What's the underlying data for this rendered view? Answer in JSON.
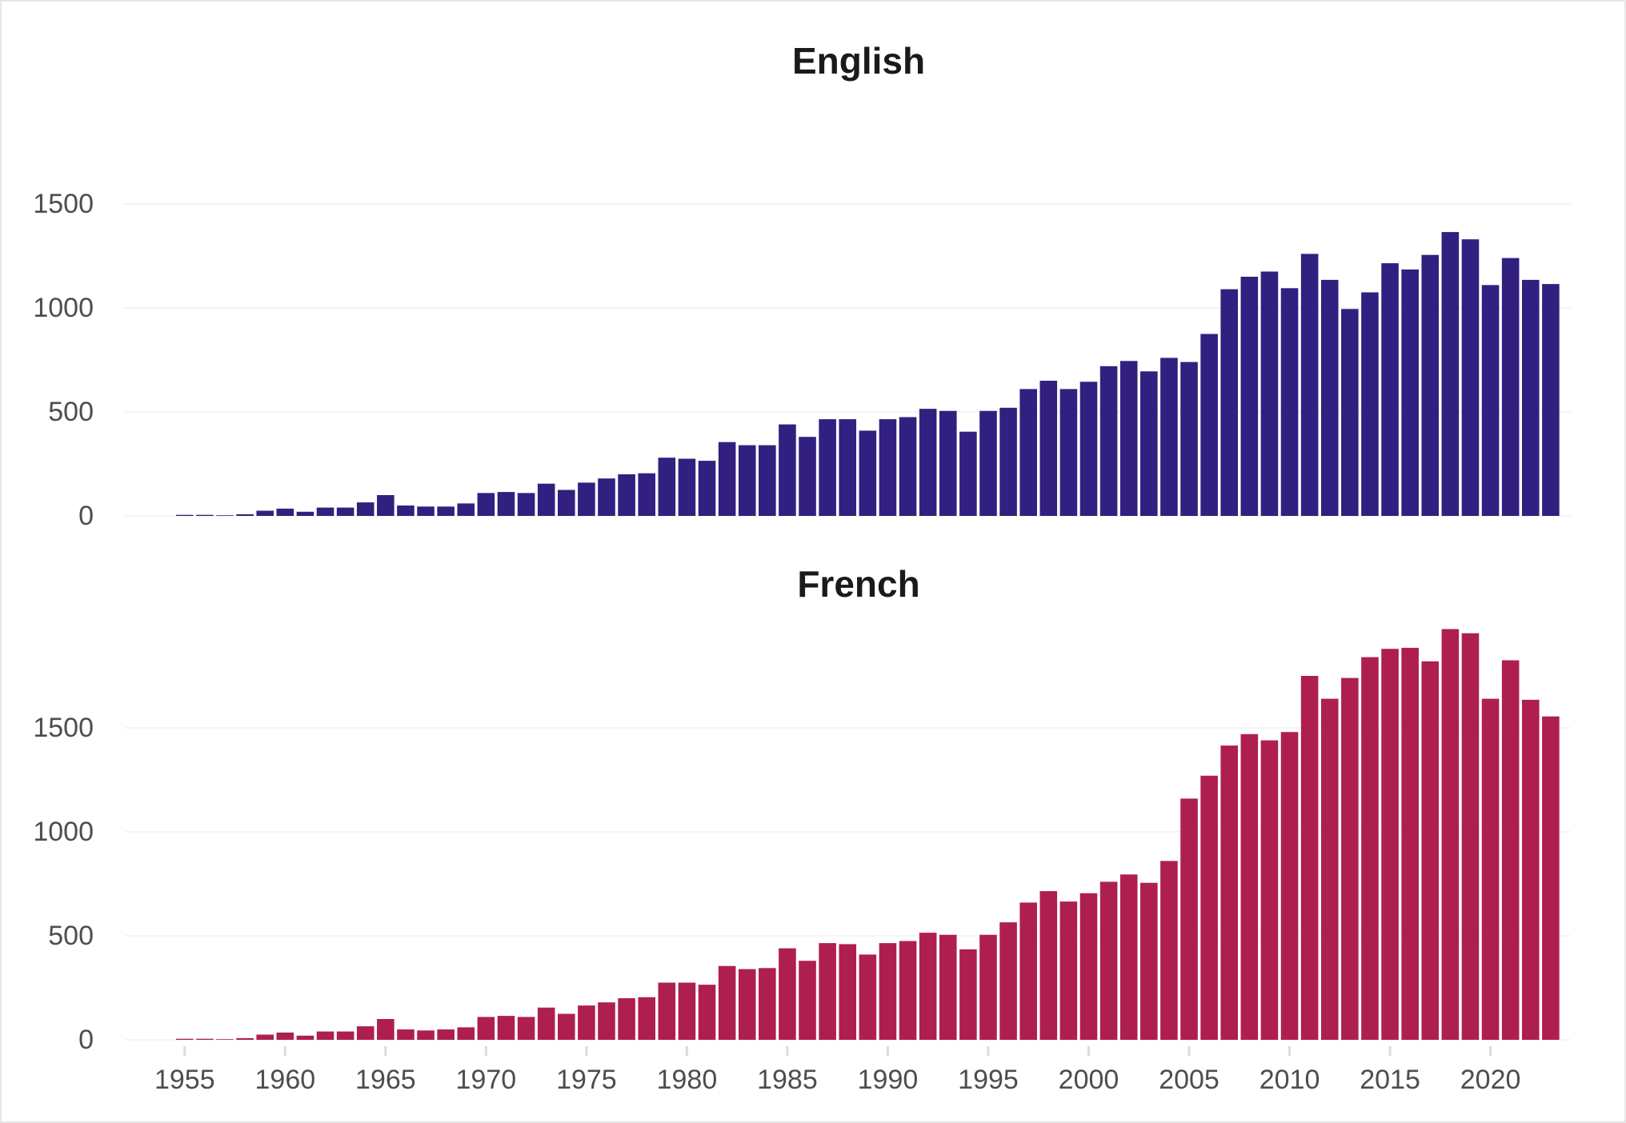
{
  "chart_data": [
    {
      "type": "bar",
      "title": "English",
      "color": "#31207f",
      "x": [
        1955,
        1956,
        1957,
        1958,
        1959,
        1960,
        1961,
        1962,
        1963,
        1964,
        1965,
        1966,
        1967,
        1968,
        1969,
        1970,
        1971,
        1972,
        1973,
        1974,
        1975,
        1976,
        1977,
        1978,
        1979,
        1980,
        1981,
        1982,
        1983,
        1984,
        1985,
        1986,
        1987,
        1988,
        1989,
        1990,
        1991,
        1992,
        1993,
        1994,
        1995,
        1996,
        1997,
        1998,
        1999,
        2000,
        2001,
        2002,
        2003,
        2004,
        2005,
        2006,
        2007,
        2008,
        2009,
        2010,
        2011,
        2012,
        2013,
        2014,
        2015,
        2016,
        2017,
        2018,
        2019,
        2020,
        2021,
        2022,
        2023
      ],
      "values": [
        5,
        5,
        3,
        8,
        25,
        35,
        20,
        40,
        40,
        65,
        100,
        50,
        45,
        45,
        60,
        110,
        115,
        110,
        155,
        125,
        160,
        180,
        200,
        205,
        280,
        275,
        265,
        355,
        340,
        340,
        440,
        380,
        465,
        465,
        410,
        465,
        475,
        515,
        505,
        405,
        505,
        520,
        610,
        650,
        610,
        645,
        720,
        745,
        695,
        760,
        740,
        875,
        1090,
        1150,
        1175,
        1095,
        1260,
        1135,
        995,
        1075,
        1215,
        1185,
        1255,
        1365,
        1330,
        1110,
        1240,
        1135,
        1115
      ],
      "xlim": [
        1952,
        2024
      ],
      "ylim": [
        0,
        1700
      ],
      "yticks": [
        0,
        500,
        1000,
        1500
      ],
      "grid": true
    },
    {
      "type": "bar",
      "title": "French",
      "color": "#ae1f4f",
      "x": [
        1955,
        1956,
        1957,
        1958,
        1959,
        1960,
        1961,
        1962,
        1963,
        1964,
        1965,
        1966,
        1967,
        1968,
        1969,
        1970,
        1971,
        1972,
        1973,
        1974,
        1975,
        1976,
        1977,
        1978,
        1979,
        1980,
        1981,
        1982,
        1983,
        1984,
        1985,
        1986,
        1987,
        1988,
        1989,
        1990,
        1991,
        1992,
        1993,
        1994,
        1995,
        1996,
        1997,
        1998,
        1999,
        2000,
        2001,
        2002,
        2003,
        2004,
        2005,
        2006,
        2007,
        2008,
        2009,
        2010,
        2011,
        2012,
        2013,
        2014,
        2015,
        2016,
        2017,
        2018,
        2019,
        2020,
        2021,
        2022,
        2023
      ],
      "values": [
        5,
        5,
        3,
        8,
        25,
        35,
        20,
        40,
        40,
        65,
        100,
        50,
        45,
        50,
        60,
        110,
        115,
        110,
        155,
        125,
        165,
        180,
        200,
        205,
        275,
        275,
        265,
        355,
        340,
        345,
        440,
        380,
        465,
        460,
        410,
        465,
        475,
        515,
        505,
        435,
        505,
        565,
        660,
        715,
        665,
        705,
        760,
        795,
        755,
        860,
        1160,
        1270,
        1415,
        1470,
        1440,
        1480,
        1750,
        1640,
        1740,
        1840,
        1880,
        1885,
        1820,
        1975,
        1955,
        1640,
        1825,
        1635,
        1555
      ],
      "xlim": [
        1952,
        2024
      ],
      "ylim": [
        0,
        2000
      ],
      "yticks": [
        0,
        500,
        1000,
        1500
      ],
      "xticks": [
        1955,
        1960,
        1965,
        1970,
        1975,
        1980,
        1985,
        1990,
        1995,
        2000,
        2005,
        2010,
        2015,
        2020
      ],
      "grid": true
    }
  ]
}
